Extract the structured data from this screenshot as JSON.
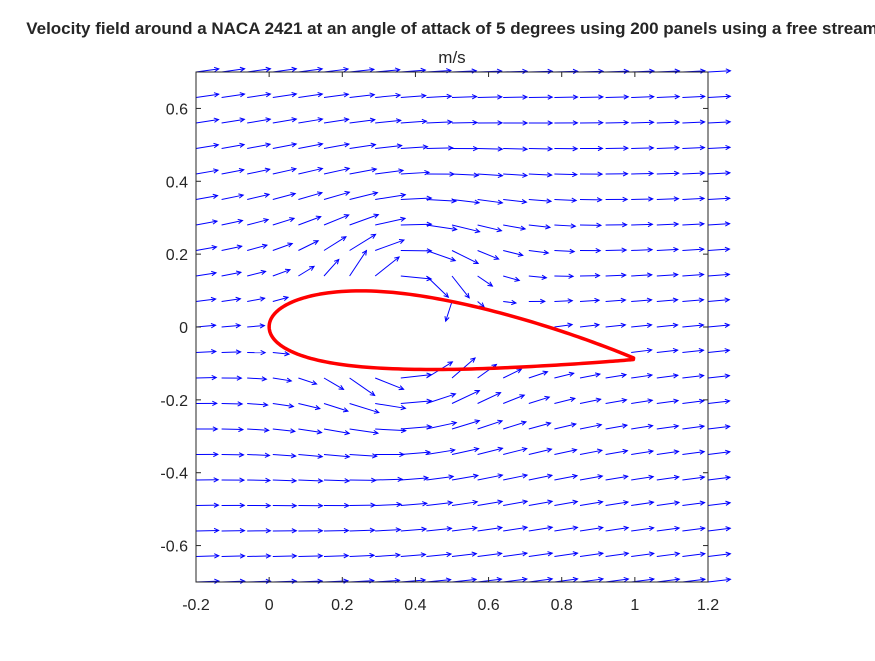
{
  "chart_data": {
    "type": "quiver",
    "title": "Velocity field around a NACA 2421 at an angle of attack of 5 degrees using 200 panels using a free stream",
    "subtitle": "m/s",
    "xlabel": "",
    "ylabel": "",
    "xlim": [
      -0.2,
      1.2
    ],
    "ylim": [
      -0.7,
      0.7
    ],
    "xticks": [
      -0.2,
      0,
      0.2,
      0.4,
      0.6,
      0.8,
      1,
      1.2
    ],
    "xtick_labels": [
      "-0.2",
      "0",
      "0.2",
      "0.4",
      "0.6",
      "0.8",
      "1",
      "1.2"
    ],
    "yticks": [
      -0.6,
      -0.4,
      -0.2,
      0,
      0.2,
      0.4,
      0.6
    ],
    "ytick_labels": [
      "-0.6",
      "-0.4",
      "-0.2",
      "0",
      "0.2",
      "0.4",
      "0.6"
    ],
    "grid": false,
    "series": [
      {
        "kind": "quiver",
        "color": "#0000FF",
        "x_start": -0.2,
        "x_step": 0.07,
        "x_count": 21,
        "y_start": -0.7,
        "y_step": 0.07,
        "y_count": 21,
        "freestream_angle_deg": 5
      },
      {
        "kind": "airfoil-outline",
        "color": "#FF0000",
        "airfoil": "NACA 2421",
        "angle_of_attack_deg": 5,
        "panels": 200
      }
    ]
  }
}
